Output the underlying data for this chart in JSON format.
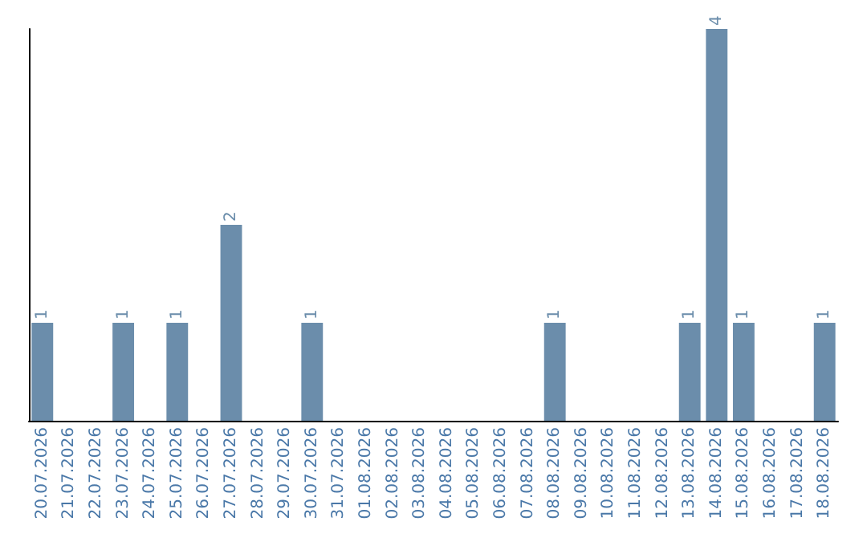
{
  "chart_data": {
    "type": "bar",
    "categories": [
      "20.07.2026",
      "21.07.2026",
      "22.07.2026",
      "23.07.2026",
      "24.07.2026",
      "25.07.2026",
      "26.07.2026",
      "27.07.2026",
      "28.07.2026",
      "29.07.2026",
      "30.07.2026",
      "31.07.2026",
      "01.08.2026",
      "02.08.2026",
      "03.08.2026",
      "04.08.2026",
      "05.08.2026",
      "06.08.2026",
      "07.08.2026",
      "08.08.2026",
      "09.08.2026",
      "10.08.2026",
      "11.08.2026",
      "12.08.2026",
      "13.08.2026",
      "14.08.2026",
      "15.08.2026",
      "16.08.2026",
      "17.08.2026",
      "18.08.2026"
    ],
    "values": [
      1,
      0,
      0,
      1,
      0,
      1,
      0,
      2,
      0,
      0,
      1,
      0,
      0,
      0,
      0,
      0,
      0,
      0,
      0,
      1,
      0,
      0,
      0,
      0,
      1,
      4,
      1,
      0,
      0,
      1
    ],
    "value_labels": [
      "1",
      null,
      null,
      "1",
      null,
      "1",
      null,
      "2",
      null,
      null,
      "1",
      null,
      null,
      null,
      null,
      null,
      null,
      null,
      null,
      "1",
      null,
      null,
      null,
      null,
      "1",
      "4",
      "1",
      null,
      null,
      "1"
    ],
    "color": "#6b8dab",
    "grid": false,
    "tick_labels": "x"
  }
}
